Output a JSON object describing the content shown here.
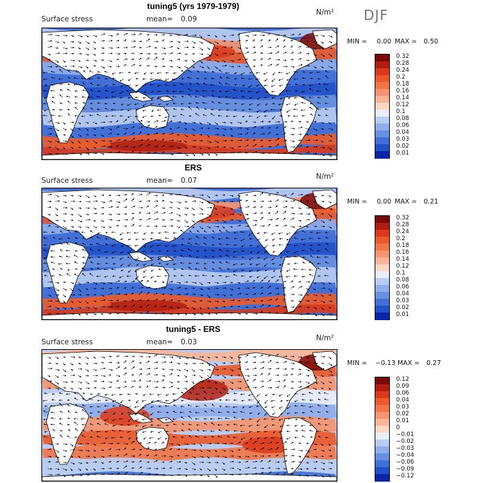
{
  "season_label": "DJF",
  "panels": [
    {
      "title": "tuning5 (yrs 1979-1979)",
      "variable": "Surface stress",
      "mean_label": "mean=",
      "mean_value": "0.09",
      "units": "N/m²",
      "min_label": "MIN =",
      "min_value": "0.00",
      "max_label": "MAX =",
      "max_value": "0.50",
      "colorbar_levels": [
        "0.32",
        "0.28",
        "0.24",
        "0.2",
        "0.18",
        "0.16",
        "0.14",
        "0.12",
        "0.1",
        "0.08",
        "0.06",
        "0.04",
        "0.03",
        "0.02",
        "0.01"
      ],
      "colorbar_colors": [
        "#7a0a0a",
        "#b01e12",
        "#d9391c",
        "#ea5a2c",
        "#f0764a",
        "#f49470",
        "#f8b598",
        "#fbd7c4",
        "#e8eefb",
        "#b9ccf1",
        "#8fadea",
        "#6990e0",
        "#4270d6",
        "#2350c8",
        "#0a24a6"
      ]
    },
    {
      "title": "ERS",
      "variable": "Surface stress",
      "mean_label": "mean=",
      "mean_value": "0.07",
      "units": "N/m²",
      "min_label": "MIN =",
      "min_value": "0.00",
      "max_label": "MAX =",
      "max_value": "0.21",
      "colorbar_levels": [
        "0.32",
        "0.28",
        "0.24",
        "0.2",
        "0.18",
        "0.16",
        "0.14",
        "0.12",
        "0.1",
        "0.08",
        "0.06",
        "0.04",
        "0.03",
        "0.02",
        "0.01"
      ],
      "colorbar_colors": [
        "#7a0a0a",
        "#b01e12",
        "#d9391c",
        "#ea5a2c",
        "#f0764a",
        "#f49470",
        "#f8b598",
        "#fbd7c4",
        "#e8eefb",
        "#b9ccf1",
        "#8fadea",
        "#6990e0",
        "#4270d6",
        "#2350c8",
        "#0a24a6"
      ]
    },
    {
      "title": "tuning5 - ERS",
      "variable": "Surface stress",
      "mean_label": "mean=",
      "mean_value": "0.03",
      "units": "N/m²",
      "min_label": "MIN =",
      "min_value": "−0.13",
      "max_label": "MAX =",
      "max_value": "0.27",
      "colorbar_levels": [
        "0.12",
        "0.09",
        "0.06",
        "0.04",
        "0.03",
        "0.02",
        "0.01",
        "0",
        "−0.01",
        "−0.02",
        "−0.03",
        "−0.04",
        "−0.06",
        "−0.09",
        "−0.12"
      ],
      "colorbar_colors": [
        "#7a0a0a",
        "#b01e12",
        "#d9391c",
        "#ea5a2c",
        "#f0764a",
        "#f49470",
        "#f8b598",
        "#fbd7c4",
        "#e8eefb",
        "#b9ccf1",
        "#8fadea",
        "#6990e0",
        "#4270d6",
        "#2350c8",
        "#0a24a6"
      ]
    }
  ]
}
